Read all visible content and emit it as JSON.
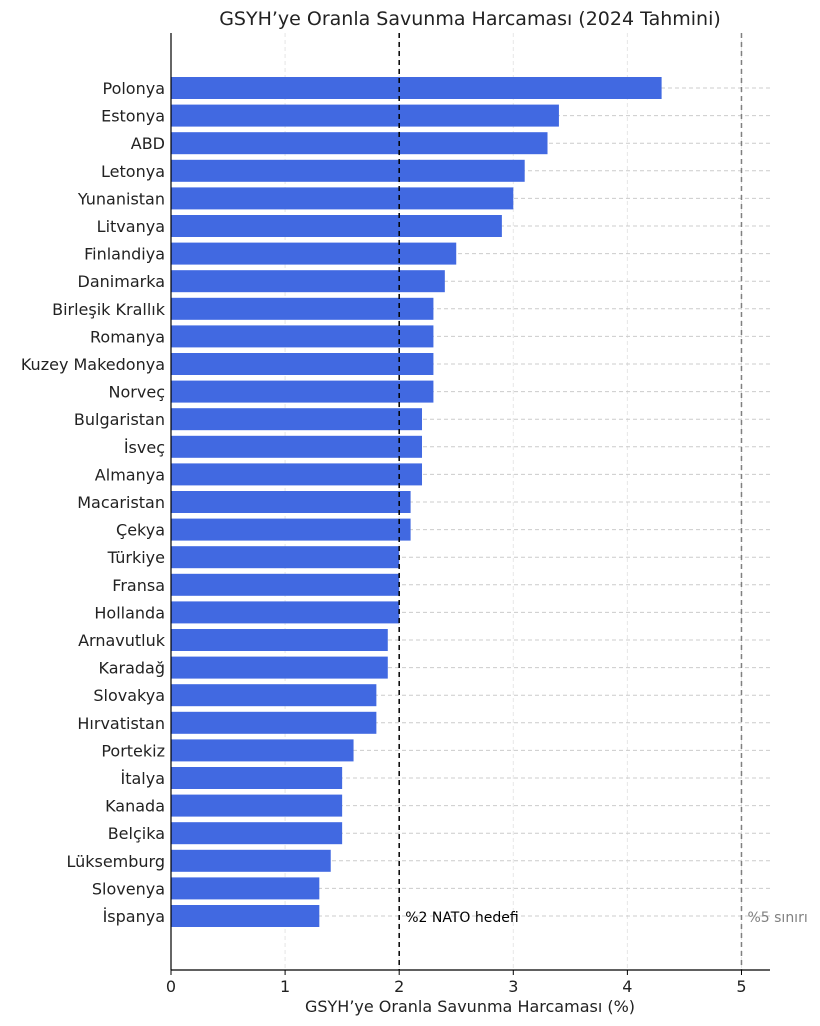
{
  "chart_data": {
    "type": "bar",
    "orientation": "horizontal",
    "title": "GSYH’ye Oranla Savunma Harcaması (2024 Tahmini)",
    "xlabel": "GSYH’ye Oranla Savunma Harcaması (%)",
    "ylabel": "",
    "xlim": [
      0,
      5.25
    ],
    "xticks": [
      "0",
      "1",
      "2",
      "3",
      "4",
      "5"
    ],
    "grid": true,
    "bar_color": "#4169e1",
    "categories": [
      "Polonya",
      "Estonya",
      "ABD",
      "Letonya",
      "Yunanistan",
      "Litvanya",
      "Finlandiya",
      "Danimarka",
      "Birleşik Krallık",
      "Romanya",
      "Kuzey Makedonya",
      "Norveç",
      "Bulgaristan",
      "İsveç",
      "Almanya",
      "Macaristan",
      "Çekya",
      "Türkiye",
      "Fransa",
      "Hollanda",
      "Arnavutluk",
      "Karadağ",
      "Slovakya",
      "Hırvatistan",
      "Portekiz",
      "İtalya",
      "Kanada",
      "Belçika",
      "Lüksemburg",
      "Slovenya",
      "İspanya"
    ],
    "values": [
      4.3,
      3.4,
      3.3,
      3.1,
      3.0,
      2.9,
      2.5,
      2.4,
      2.3,
      2.3,
      2.3,
      2.3,
      2.2,
      2.2,
      2.2,
      2.1,
      2.1,
      2.0,
      2.0,
      2.0,
      1.9,
      1.9,
      1.8,
      1.8,
      1.6,
      1.5,
      1.5,
      1.5,
      1.4,
      1.3,
      1.3
    ],
    "reference_lines": [
      {
        "x": 2,
        "label": "%2 NATO hedefi",
        "color": "#000000"
      },
      {
        "x": 5,
        "label": "%5 sınırı",
        "color": "#808080"
      }
    ]
  }
}
